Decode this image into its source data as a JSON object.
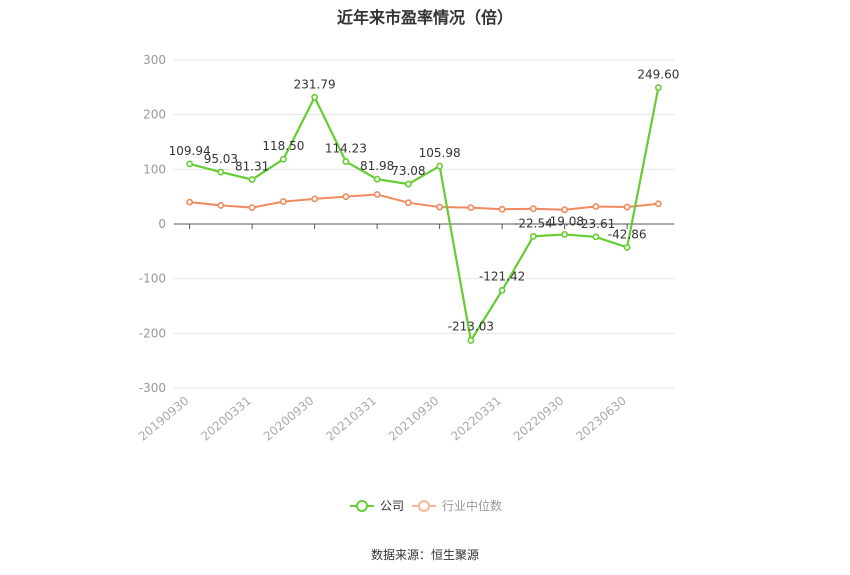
{
  "chart_data": {
    "type": "line",
    "title": "近年来市盈率情况（倍）",
    "source": "数据来源：恒生聚源",
    "x": [
      "20190930",
      "20191231",
      "20200331",
      "20200630",
      "20200930",
      "20201231",
      "20210331",
      "20210630",
      "20210930",
      "20211231",
      "20220331",
      "20220630",
      "20220930",
      "20221231",
      "20230630",
      "20231231"
    ],
    "x_tick_labels": [
      "20190930",
      "20200331",
      "20200930",
      "20210331",
      "20210930",
      "20220331",
      "20220930",
      "20230630"
    ],
    "ylim": [
      -300,
      300
    ],
    "y_ticks": [
      -300,
      -200,
      -100,
      0,
      100,
      200,
      300
    ],
    "grid": true,
    "legend_position": "bottom",
    "series": [
      {
        "name": "公司",
        "color": "#66cc33",
        "values": [
          109.94,
          95.03,
          81.31,
          118.5,
          231.79,
          114.23,
          81.98,
          73.08,
          105.98,
          -213.03,
          -121.42,
          -22.54,
          -19.08,
          -23.61,
          -42.86,
          249.6
        ],
        "labels": [
          "109.94",
          "95.03",
          "81.31",
          "118.50",
          "231.79",
          "114.23",
          "81.98",
          "73.08",
          "105.98",
          "-213.03",
          "-121.42",
          "-22.54",
          "-19.08",
          "-23.61",
          "-42.86",
          "249.60"
        ]
      },
      {
        "name": "行业中位数",
        "color": "#f08a5d",
        "values": [
          40,
          34,
          30,
          41,
          46,
          50,
          54,
          39,
          31,
          30,
          27,
          28,
          26,
          32,
          31,
          37
        ]
      }
    ]
  }
}
